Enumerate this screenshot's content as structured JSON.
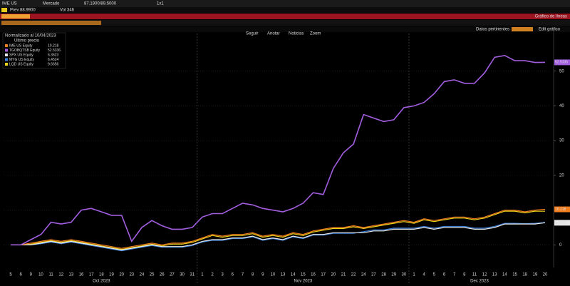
{
  "header": {
    "ticker": "IME US",
    "field": "Mercado",
    "bid_ask": "87.1900/89.5000",
    "ratio": "1x1",
    "prev": "Prev 88.9900",
    "volume": "Vol 346",
    "panel_title": "Gráfico de líneas"
  },
  "toolbar": {
    "items": [
      "Seguir",
      "Anotar",
      "Noticias",
      "Zoom"
    ],
    "right": [
      "Datos pertinentes",
      "Edit gráfico"
    ]
  },
  "chart_data": {
    "type": "line",
    "subtitle": "Normalizado al 10/04/2023",
    "legend_title": "Último precio",
    "categories": [
      "5",
      "6",
      "9",
      "10",
      "11",
      "12",
      "13",
      "16",
      "17",
      "18",
      "19",
      "20",
      "23",
      "24",
      "25",
      "26",
      "27",
      "30",
      "31",
      "1",
      "2",
      "3",
      "6",
      "7",
      "8",
      "9",
      "10",
      "13",
      "14",
      "15",
      "16",
      "17",
      "20",
      "21",
      "22",
      "24",
      "27",
      "28",
      "29",
      "30",
      "1",
      "4",
      "5",
      "6",
      "7",
      "8",
      "11",
      "12",
      "13",
      "14",
      "15",
      "18",
      "19",
      "20"
    ],
    "month_labels": [
      "Oct 2023",
      "Nov 2023",
      "Dec 2023"
    ],
    "series": [
      {
        "name": "IME US Equity",
        "color": "#f07d1e",
        "values": [
          0,
          0,
          0.5,
          1,
          1.5,
          1,
          1.5,
          1,
          0.5,
          0,
          -0.5,
          -1,
          -0.5,
          0,
          0.5,
          0,
          0.5,
          0.5,
          1,
          2,
          3,
          2.5,
          3,
          3,
          3.5,
          2.5,
          3,
          2.5,
          3.5,
          3,
          4,
          4.5,
          5,
          5,
          5.5,
          5,
          5.5,
          6,
          6.5,
          7,
          6.5,
          7.5,
          7,
          7.5,
          8,
          8,
          7.5,
          8,
          9,
          10,
          10,
          9.5,
          10,
          10.218
        ]
      },
      {
        "name": "TGOBQTSB Equity",
        "color": "#a35ee0",
        "values": [
          0,
          0,
          1.5,
          3,
          6.5,
          6,
          6.5,
          10,
          10.5,
          9.5,
          8.5,
          8.5,
          1,
          5,
          7,
          5.5,
          4.5,
          4.5,
          5,
          8,
          9,
          9,
          10.5,
          12,
          11.5,
          10.5,
          10,
          9.5,
          10.5,
          12,
          15,
          14.5,
          22,
          26.5,
          29,
          37.5,
          36.5,
          35.5,
          36,
          39.5,
          40,
          41,
          43.5,
          47,
          47.5,
          46.5,
          46.5,
          49.5,
          54,
          54.5,
          53,
          53,
          52.5,
          52.5336
        ]
      },
      {
        "name": "SPX US Equity",
        "color": "#e8e8e8",
        "values": [
          0,
          0,
          0,
          0.5,
          1,
          0.5,
          1,
          0.5,
          0,
          -0.5,
          -1,
          -1.5,
          -1,
          -0.5,
          0,
          -0.5,
          -0.5,
          -0.5,
          0,
          1,
          1.5,
          1.5,
          2,
          2,
          2.5,
          1.5,
          2,
          1.5,
          2.5,
          2,
          3,
          3,
          3.5,
          3.5,
          3.5,
          3.5,
          4,
          4,
          4.5,
          4.5,
          4.5,
          5,
          4.5,
          5,
          5,
          5,
          4.5,
          4.5,
          5,
          6,
          6,
          6,
          6,
          6.3623
        ]
      },
      {
        "name": "MYG US Equity",
        "color": "#3a7fd8",
        "values": [
          0,
          0,
          0,
          0.3,
          0.8,
          0.3,
          0.8,
          0.3,
          -0.2,
          -0.7,
          -1.2,
          -1.7,
          -1.2,
          -0.7,
          -0.2,
          -0.7,
          -0.7,
          -0.7,
          -0.2,
          0.8,
          1.3,
          1.3,
          1.8,
          1.8,
          2.3,
          1.3,
          1.8,
          1.3,
          2.3,
          1.8,
          2.8,
          2.8,
          3.3,
          3.3,
          3.3,
          3.8,
          4.3,
          4.3,
          4.8,
          4.8,
          4.8,
          5.3,
          4.8,
          5.3,
          5.3,
          5.3,
          4.8,
          4.8,
          5.3,
          6.2,
          6.2,
          6.1,
          6.2,
          6.4524
        ]
      },
      {
        "name": "LQD US Equity",
        "color": "#f2d21b",
        "values": [
          0,
          0,
          0.2,
          0.7,
          1.2,
          0.7,
          1.2,
          0.7,
          0.2,
          -0.3,
          -0.8,
          -1.3,
          -0.8,
          -0.3,
          0.2,
          -0.3,
          0.2,
          0.2,
          0.7,
          1.7,
          2.7,
          2.2,
          2.7,
          2.7,
          3.2,
          2.2,
          2.7,
          2.2,
          3.2,
          2.7,
          3.7,
          4.2,
          4.7,
          4.7,
          5.2,
          4.7,
          5.2,
          5.7,
          6.2,
          6.7,
          6.2,
          7.2,
          6.7,
          7.2,
          7.7,
          7.7,
          7.2,
          7.7,
          8.7,
          9.7,
          9.7,
          9.2,
          9.7,
          9.6656
        ]
      }
    ],
    "ylim": [
      -2.4,
      59.8
    ],
    "yticks": [
      0,
      10,
      20,
      30,
      40,
      50
    ],
    "grid": true,
    "legend": "upper left"
  }
}
